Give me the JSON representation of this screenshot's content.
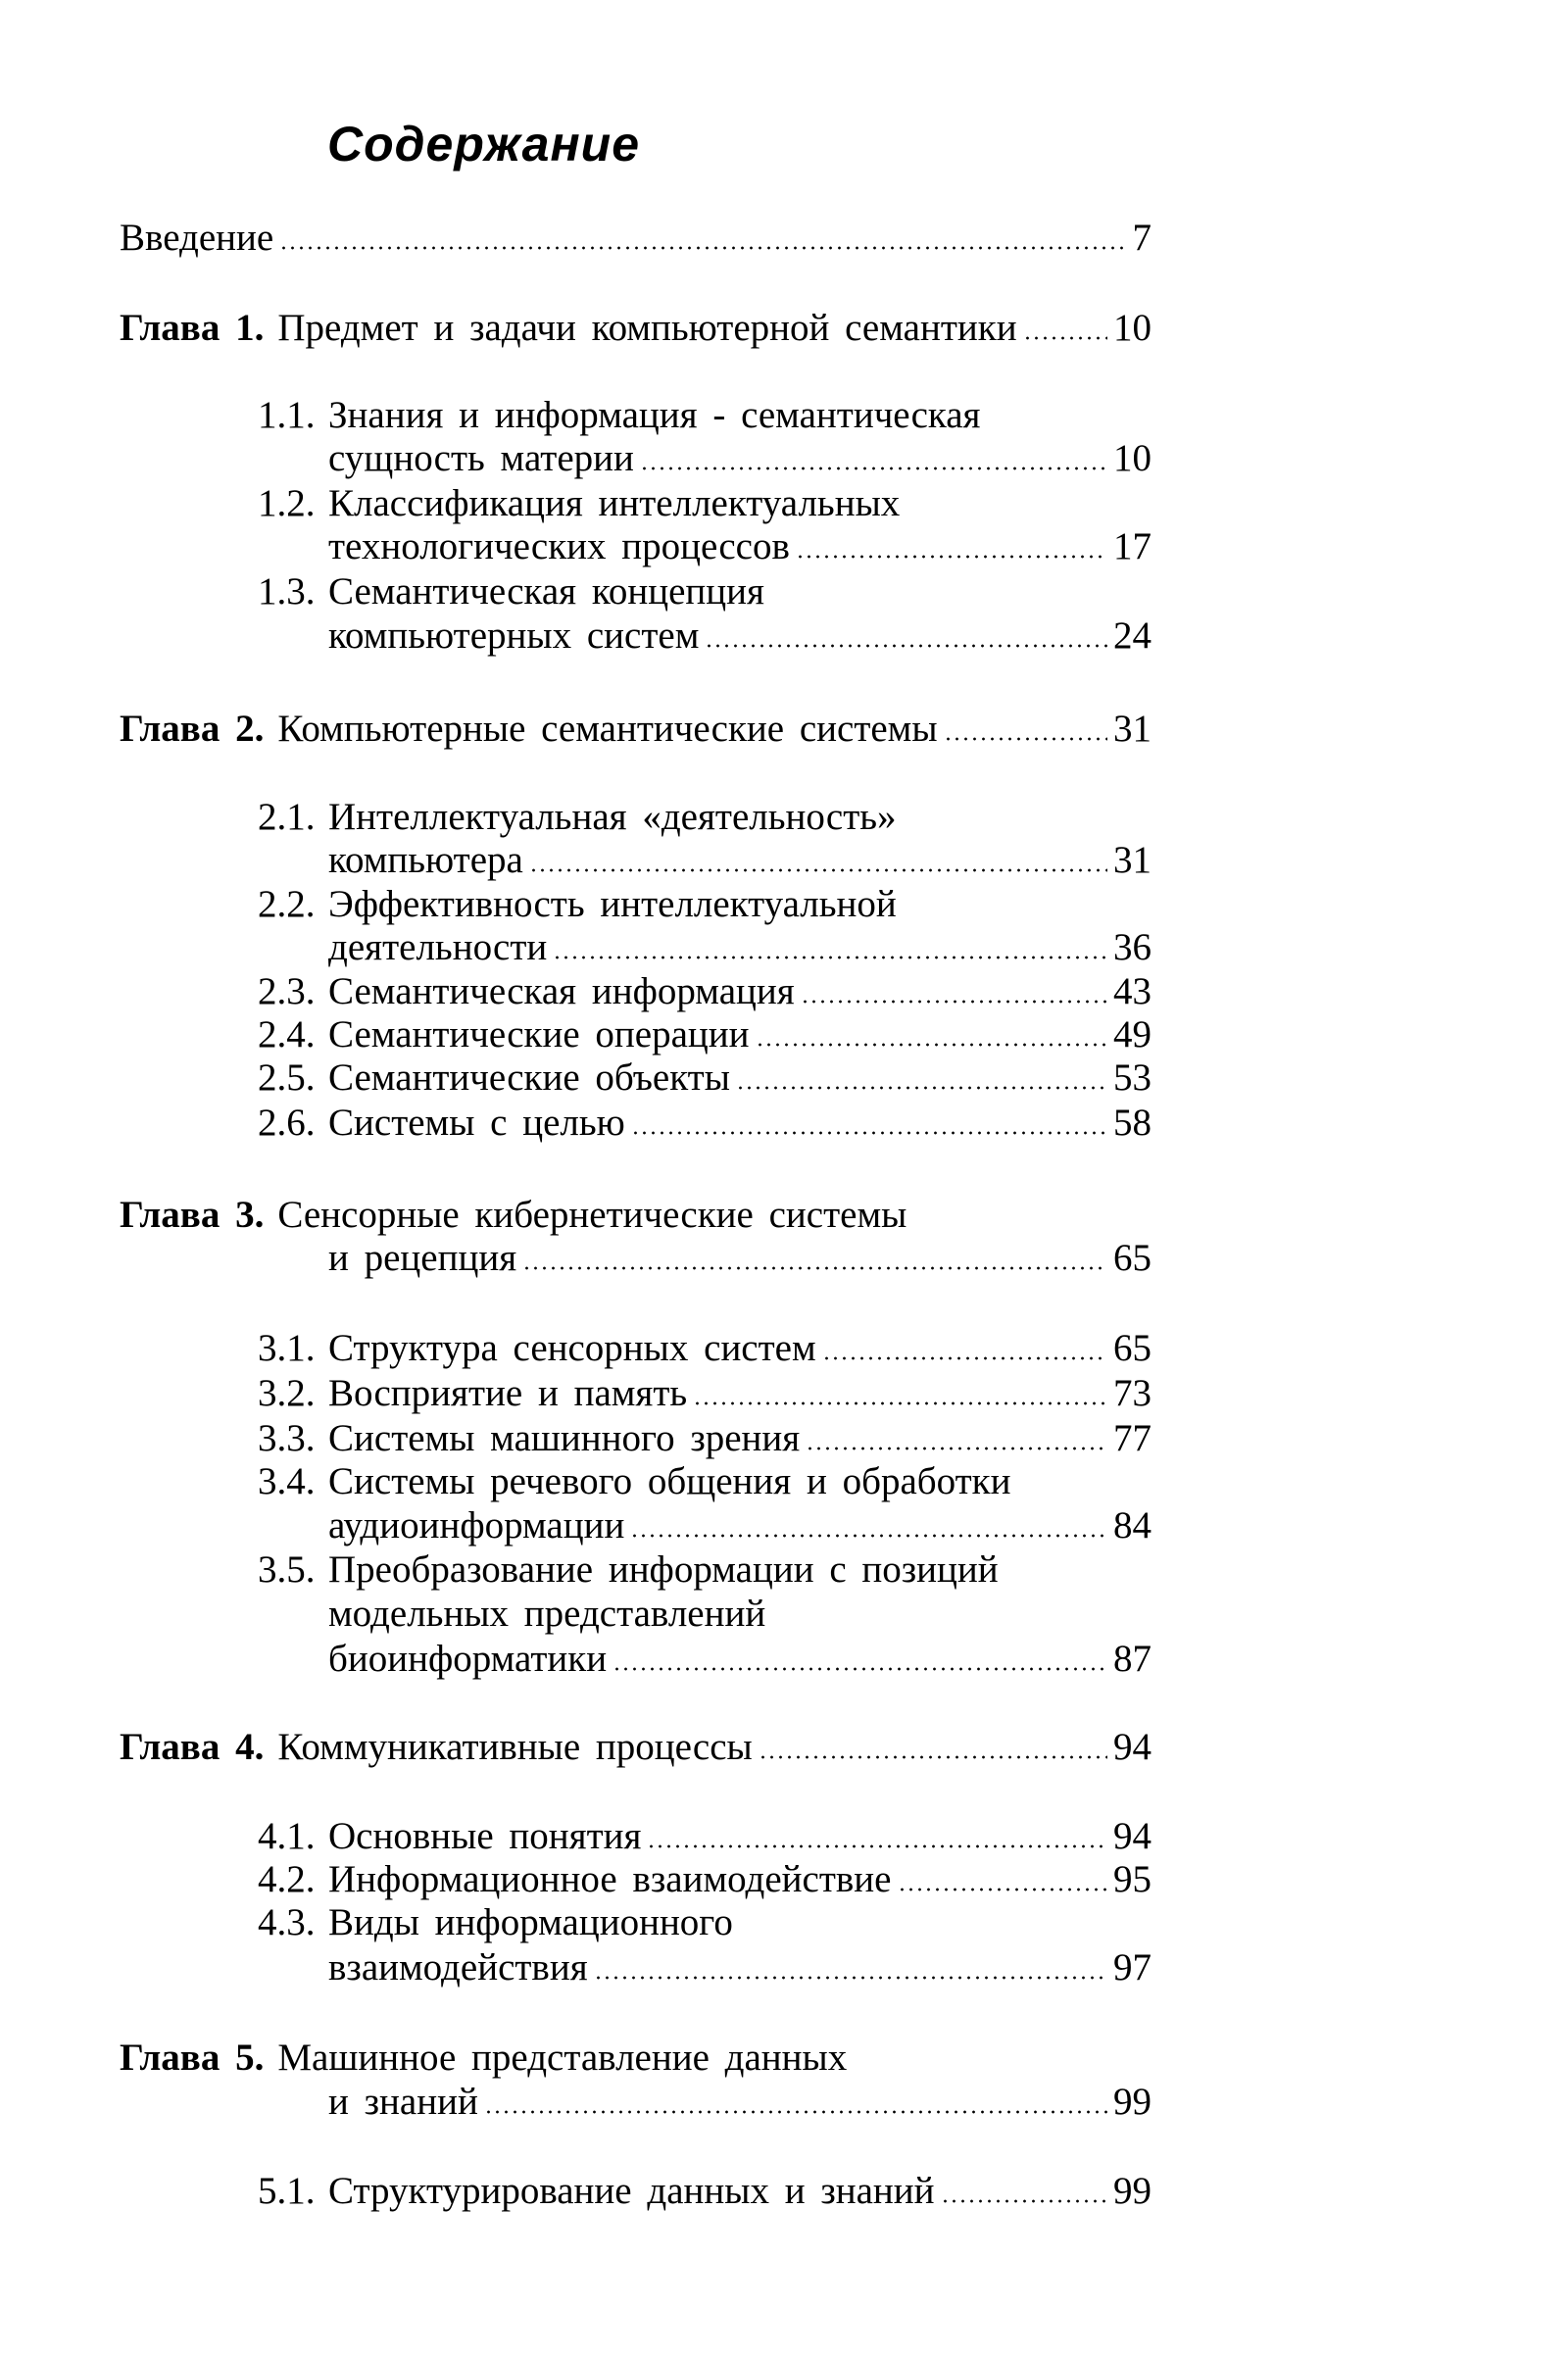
{
  "title": "Содержание",
  "entries": [
    {
      "type": "intro",
      "lines": [
        "Введение"
      ],
      "page": "7"
    },
    {
      "type": "chapter",
      "label": "Глава 1.",
      "lines": [
        "Предмет и задачи компьютерной семантики"
      ],
      "page": "10"
    },
    {
      "type": "section",
      "number": "1.1.",
      "lines": [
        "Знания и информация - семантическая",
        "сущность материи"
      ],
      "page": "10"
    },
    {
      "type": "section",
      "number": "1.2.",
      "lines": [
        "Классификация интеллектуальных",
        "технологических процессов"
      ],
      "page": "17"
    },
    {
      "type": "section",
      "number": "1.3.",
      "lines": [
        "Семантическая концепция",
        "компьютерных систем"
      ],
      "page": "24"
    },
    {
      "type": "chapter",
      "label": "Глава 2.",
      "lines": [
        "Компьютерные семантические системы"
      ],
      "page": "31"
    },
    {
      "type": "section",
      "number": "2.1.",
      "lines": [
        "Интеллектуальная «деятельность»",
        "компьютера"
      ],
      "page": "31"
    },
    {
      "type": "section",
      "number": "2.2.",
      "lines": [
        "Эффективность интеллектуальной",
        "деятельности"
      ],
      "page": "36"
    },
    {
      "type": "section",
      "number": "2.3.",
      "lines": [
        "Семантическая информация"
      ],
      "page": "43"
    },
    {
      "type": "section",
      "number": "2.4.",
      "lines": [
        "Семантические операции"
      ],
      "page": "49"
    },
    {
      "type": "section",
      "number": "2.5.",
      "lines": [
        "Семантические объекты"
      ],
      "page": "53"
    },
    {
      "type": "section",
      "number": "2.6.",
      "lines": [
        "Системы с целью"
      ],
      "page": "58"
    },
    {
      "type": "chapter",
      "label": "Глава 3.",
      "lines": [
        "Сенсорные кибернетические системы",
        "и рецепция"
      ],
      "page": "65"
    },
    {
      "type": "section",
      "number": "3.1.",
      "lines": [
        "Структура сенсорных систем"
      ],
      "page": "65"
    },
    {
      "type": "section",
      "number": "3.2.",
      "lines": [
        "Восприятие и память"
      ],
      "page": "73"
    },
    {
      "type": "section",
      "number": "3.3.",
      "lines": [
        "Системы машинного зрения"
      ],
      "page": "77"
    },
    {
      "type": "section",
      "number": "3.4.",
      "lines": [
        "Системы речевого общения и обработки",
        "аудиоинформации"
      ],
      "page": "84"
    },
    {
      "type": "section",
      "number": "3.5.",
      "lines": [
        "Преобразование информации с позиций",
        "модельных представлений",
        "биоинформатики"
      ],
      "page": "87"
    },
    {
      "type": "chapter",
      "label": "Глава 4.",
      "lines": [
        "Коммуникативные процессы"
      ],
      "page": "94"
    },
    {
      "type": "section",
      "number": "4.1.",
      "lines": [
        "Основные понятия"
      ],
      "page": "94"
    },
    {
      "type": "section",
      "number": "4.2.",
      "lines": [
        "Информационное взаимодействие"
      ],
      "page": "95"
    },
    {
      "type": "section",
      "number": "4.3.",
      "lines": [
        "Виды информационного",
        "взаимодействия"
      ],
      "page": "97"
    },
    {
      "type": "chapter",
      "label": "Глава 5.",
      "lines": [
        "Машинное представление данных",
        "и знаний"
      ],
      "page": "99"
    },
    {
      "type": "section",
      "number": "5.1.",
      "lines": [
        "Структурирование данных и знаний"
      ],
      "page": "99"
    }
  ]
}
